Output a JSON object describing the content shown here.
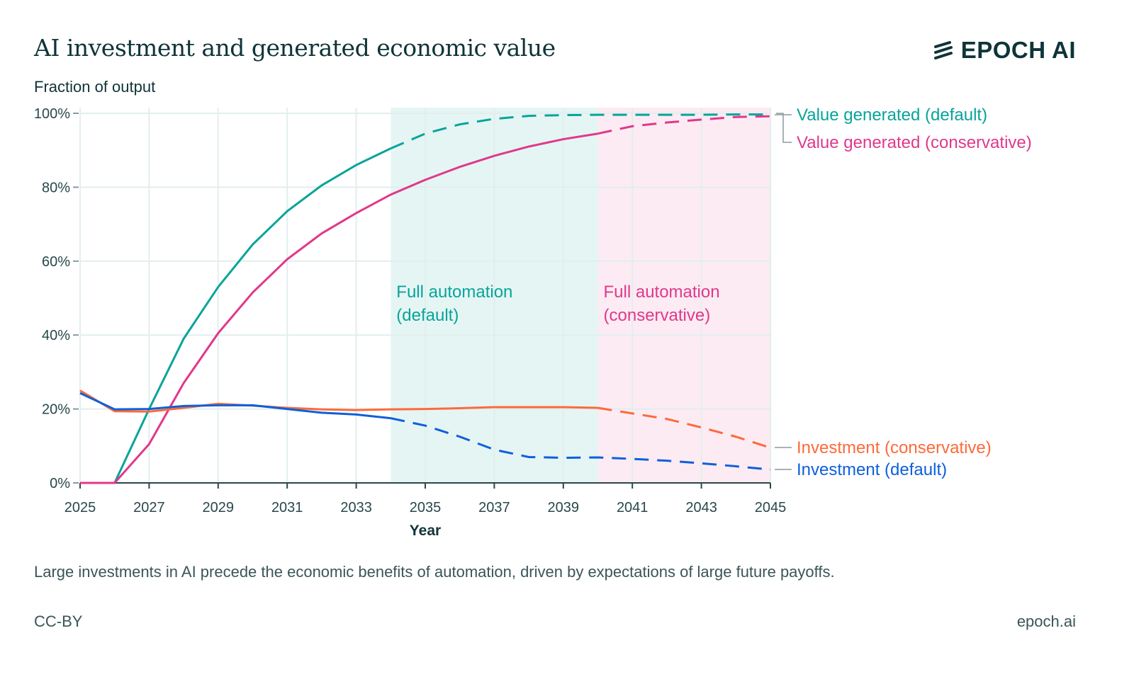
{
  "header": {
    "title": "AI investment and generated economic value",
    "logo_text": "EPOCH AI"
  },
  "footer": {
    "caption": "Large investments in AI precede the economic benefits of automation, driven by expectations of large future payoffs.",
    "license": "CC-BY",
    "site": "epoch.ai"
  },
  "chart_data": {
    "type": "line",
    "title": "AI investment and generated economic value",
    "ylabel": "Fraction of output",
    "xlabel": "Year",
    "xlim": [
      2025,
      2045
    ],
    "ylim": [
      0,
      100
    ],
    "x_ticks": [
      2025,
      2027,
      2029,
      2031,
      2033,
      2035,
      2037,
      2039,
      2041,
      2043,
      2045
    ],
    "y_ticks": [
      "0%",
      "20%",
      "40%",
      "60%",
      "80%",
      "100%"
    ],
    "grid": true,
    "x": [
      2025,
      2026,
      2027,
      2028,
      2029,
      2030,
      2031,
      2032,
      2033,
      2034,
      2035,
      2036,
      2037,
      2038,
      2039,
      2040,
      2041,
      2042,
      2043,
      2044,
      2045
    ],
    "series": [
      {
        "name": "Value generated (default)",
        "color": "#08a49a",
        "solid_until": 2034,
        "values": [
          0,
          0,
          20,
          39,
          53,
          64.5,
          73.5,
          80.5,
          86,
          90.5,
          94.5,
          97,
          98.5,
          99.3,
          99.5,
          99.6,
          99.6,
          99.6,
          99.6,
          99.7,
          99.7
        ]
      },
      {
        "name": "Value generated (conservative)",
        "color": "#e0388b",
        "solid_until": 2040,
        "values": [
          0,
          0,
          10.5,
          27,
          40.5,
          51.5,
          60.5,
          67.5,
          73,
          78,
          82,
          85.5,
          88.5,
          91,
          93,
          94.5,
          96.5,
          97.5,
          98.3,
          99,
          99.2
        ]
      },
      {
        "name": "Investment (conservative)",
        "color": "#fd6a3a",
        "solid_until": 2040,
        "values": [
          25,
          19.4,
          19.3,
          20.3,
          21.4,
          20.9,
          20.3,
          19.9,
          19.7,
          19.9,
          20,
          20.2,
          20.5,
          20.5,
          20.5,
          20.3,
          18.8,
          17.3,
          15,
          12.5,
          9.5
        ]
      },
      {
        "name": "Investment (default)",
        "color": "#0e5fdb",
        "solid_until": 2034,
        "values": [
          24.3,
          19.9,
          20,
          20.8,
          21,
          21,
          20,
          19,
          18.5,
          17.5,
          15.5,
          12.5,
          9,
          7,
          6.8,
          6.9,
          6.5,
          6,
          5.3,
          4.5,
          3.6
        ]
      }
    ],
    "regions": [
      {
        "label_lines": [
          "Full automation",
          "(default)"
        ],
        "from": 2034,
        "to": 2040,
        "color": "#e5f5f4",
        "text_color": "#08a49a"
      },
      {
        "label_lines": [
          "Full automation",
          "(conservative)"
        ],
        "from": 2040,
        "to": 2045,
        "color": "#fcebf3",
        "text_color": "#e0388b"
      }
    ],
    "legend": "right, inline labels at line ends"
  }
}
